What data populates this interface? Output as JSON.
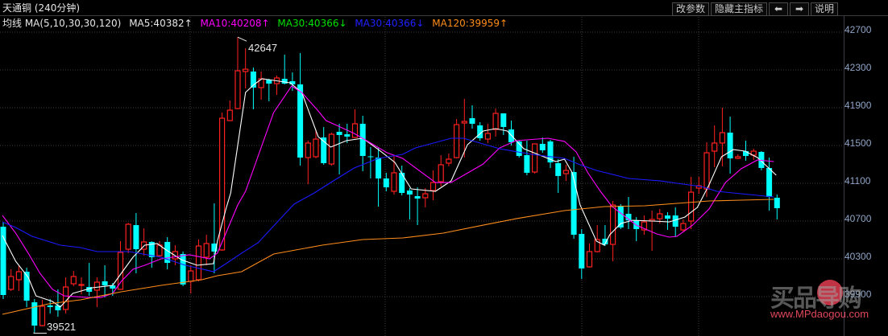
{
  "header": {
    "title": "天通铜 (240分钟)",
    "buttons": {
      "edit_params": "改参数",
      "hide_main_indicator": "隐藏主指标",
      "prev": "⬅",
      "next": "➡",
      "help": "说明"
    }
  },
  "ma_legend": {
    "label": "均线 MA(5,10,30,30,120)",
    "ma5": "MA5:40382↑",
    "ma10": "MA10:40208↑",
    "ma30a": "MA30:40366↓",
    "ma30b": "MA30:40366↓",
    "ma120": "MA120:39959↑"
  },
  "colors": {
    "up": "#ff2020",
    "down": "#00ffff",
    "ma5": "#ffffff",
    "ma10": "#ff00ff",
    "ma30a": "#00e000",
    "ma30b": "#1a1aff",
    "ma120": "#ff8c1a",
    "grid": "#3a3a3a"
  },
  "y_axis": {
    "ticks": [
      "42700",
      "42300",
      "41900",
      "41500",
      "41100",
      "40700",
      "40300",
      "39900"
    ]
  },
  "annotations": {
    "high": "42647",
    "low": "39521"
  },
  "watermark": {
    "logo": "买品导购",
    "url": "www.MPdaogou.com"
  },
  "chart_data": {
    "type": "candlestick",
    "title": "天通铜 (240分钟)",
    "ylabel": "",
    "ylim": [
      39521,
      42700
    ],
    "y_ticks": [
      42700,
      42300,
      41900,
      41500,
      41100,
      40700,
      40300,
      39900
    ],
    "grid": true,
    "high_marker": 42647,
    "low_marker": 39521,
    "candles_ohlc": [
      [
        40640,
        40683,
        39874,
        39917
      ],
      [
        39977,
        40189,
        39960,
        40113
      ],
      [
        40079,
        40232,
        39960,
        40164
      ],
      [
        40164,
        40206,
        39789,
        39857
      ],
      [
        39840,
        39874,
        39521,
        39593
      ],
      [
        39593,
        39866,
        39585,
        39798
      ],
      [
        39806,
        39874,
        39721,
        39789
      ],
      [
        39806,
        39977,
        39687,
        39755
      ],
      [
        39764,
        40104,
        39721,
        40002
      ],
      [
        40036,
        40172,
        40011,
        40113
      ],
      [
        40019,
        40104,
        39925,
        40028
      ],
      [
        40002,
        40257,
        39908,
        39951
      ],
      [
        39968,
        40104,
        39789,
        40053
      ],
      [
        40062,
        40232,
        39891,
        40019
      ],
      [
        40019,
        40045,
        39908,
        39985
      ],
      [
        39977,
        40487,
        39970,
        40368
      ],
      [
        40402,
        40680,
        40360,
        40666
      ],
      [
        40657,
        40785,
        40147,
        40402
      ],
      [
        40402,
        40623,
        40334,
        40479
      ],
      [
        40479,
        40487,
        40206,
        40317
      ],
      [
        40334,
        40487,
        40317,
        40445
      ],
      [
        40479,
        40530,
        40189,
        40257
      ],
      [
        40300,
        40445,
        40232,
        40377
      ],
      [
        40351,
        40377,
        40011,
        40028
      ],
      [
        40062,
        40232,
        39934,
        40172
      ],
      [
        40079,
        40504,
        40062,
        40436
      ],
      [
        40317,
        40555,
        40232,
        40462
      ],
      [
        40462,
        40887,
        40147,
        40377
      ],
      [
        40394,
        41849,
        40385,
        41789
      ],
      [
        41764,
        41977,
        41764,
        41874
      ],
      [
        41891,
        42647,
        41883,
        42291
      ],
      [
        42283,
        42530,
        42104,
        42308
      ],
      [
        42283,
        42326,
        41883,
        42113
      ],
      [
        42113,
        42283,
        41985,
        42206
      ],
      [
        42198,
        42206,
        41968,
        42155
      ],
      [
        42155,
        42240,
        42036,
        42215
      ],
      [
        42206,
        42462,
        42147,
        42155
      ],
      [
        42181,
        42274,
        42079,
        42147
      ],
      [
        42147,
        42479,
        41287,
        41372
      ],
      [
        41372,
        41551,
        41091,
        41526
      ],
      [
        41381,
        41670,
        41364,
        41568
      ],
      [
        41585,
        41696,
        41296,
        41313
      ],
      [
        41304,
        41636,
        41287,
        41619
      ],
      [
        41645,
        41730,
        41194,
        41611
      ],
      [
        41619,
        41730,
        41526,
        41594
      ],
      [
        41585,
        41883,
        41577,
        41730
      ],
      [
        41730,
        41815,
        41228,
        41389
      ],
      [
        41385,
        41483,
        41151,
        41377
      ],
      [
        41372,
        41475,
        40853,
        41151
      ],
      [
        41151,
        41211,
        41015,
        41057
      ],
      [
        41015,
        41389,
        40981,
        41211
      ],
      [
        41211,
        41287,
        40972,
        40998
      ],
      [
        41023,
        41049,
        40717,
        40981
      ],
      [
        40964,
        41057,
        40657,
        40938
      ],
      [
        40947,
        41049,
        40845,
        40989
      ],
      [
        41023,
        41236,
        40921,
        41108
      ],
      [
        41117,
        41398,
        41066,
        41296
      ],
      [
        41313,
        41415,
        41279,
        41355
      ],
      [
        41372,
        41781,
        41364,
        41721
      ],
      [
        41738,
        41994,
        41372,
        41755
      ],
      [
        41789,
        41926,
        41679,
        41730
      ],
      [
        41713,
        41747,
        41551,
        41577
      ],
      [
        41568,
        41730,
        41526,
        41628
      ],
      [
        41670,
        41891,
        41594,
        41840
      ],
      [
        41840,
        41840,
        41611,
        41696
      ],
      [
        41670,
        41764,
        41500,
        41534
      ],
      [
        41543,
        41551,
        41372,
        41389
      ],
      [
        41398,
        41551,
        41185,
        41211
      ],
      [
        41219,
        41517,
        41202,
        41517
      ],
      [
        41517,
        41585,
        41423,
        41449
      ],
      [
        41543,
        41560,
        41262,
        41321
      ],
      [
        41313,
        41355,
        40998,
        41177
      ],
      [
        41202,
        41296,
        41125,
        41236
      ],
      [
        41219,
        41381,
        40513,
        40555
      ],
      [
        40564,
        40615,
        40087,
        40198
      ],
      [
        40215,
        40462,
        40206,
        40377
      ],
      [
        40377,
        40657,
        40368,
        40504
      ],
      [
        40513,
        40657,
        40436,
        40453
      ],
      [
        40453,
        40913,
        40274,
        40870
      ],
      [
        40862,
        40879,
        40615,
        40632
      ],
      [
        40777,
        40955,
        40615,
        40708
      ],
      [
        40708,
        40742,
        40487,
        40615
      ],
      [
        40606,
        40759,
        40555,
        40691
      ],
      [
        40700,
        40811,
        40385,
        40717
      ],
      [
        40725,
        40828,
        40674,
        40777
      ],
      [
        40759,
        40794,
        40606,
        40725
      ],
      [
        40759,
        40845,
        40530,
        40640
      ],
      [
        40606,
        40717,
        40581,
        40674
      ],
      [
        40700,
        41168,
        40615,
        41006
      ],
      [
        41049,
        41168,
        40989,
        41074
      ],
      [
        41040,
        41534,
        40955,
        41423
      ],
      [
        41440,
        41713,
        41270,
        41526
      ],
      [
        41526,
        41900,
        41279,
        41636
      ],
      [
        41636,
        41806,
        41202,
        41364
      ],
      [
        41364,
        41406,
        41355,
        41381
      ],
      [
        41440,
        41551,
        41338,
        41389
      ],
      [
        41398,
        41466,
        41347,
        41440
      ],
      [
        41432,
        41440,
        41236,
        41262
      ],
      [
        41262,
        41372,
        40811,
        40955
      ],
      [
        40947,
        40981,
        40717,
        40836
      ]
    ],
    "series": [
      {
        "name": "MA5",
        "color": "#ffffff",
        "points": [
          [
            -0.1,
            40547
          ],
          [
            1.6,
            40274
          ],
          [
            3.2,
            40104
          ],
          [
            4.2,
            39908
          ],
          [
            6.3,
            39849
          ],
          [
            7.3,
            39789
          ],
          [
            8.9,
            39934
          ],
          [
            11.4,
            39994
          ],
          [
            14.0,
            40019
          ],
          [
            15.1,
            40147
          ],
          [
            16.6,
            40317
          ],
          [
            18.1,
            40445
          ],
          [
            19.7,
            40462
          ],
          [
            20.7,
            40402
          ],
          [
            22.8,
            40291
          ],
          [
            24.8,
            40232
          ],
          [
            26.9,
            40249
          ],
          [
            27.4,
            40487
          ],
          [
            28.5,
            40828
          ],
          [
            29.1,
            40998
          ],
          [
            31.0,
            42062
          ],
          [
            32.1,
            42147
          ],
          [
            33.1,
            42206
          ],
          [
            34.6,
            42189
          ],
          [
            36.7,
            42164
          ],
          [
            38.2,
            42062
          ],
          [
            40.3,
            41594
          ],
          [
            41.9,
            41483
          ],
          [
            43.9,
            41551
          ],
          [
            46.0,
            41577
          ],
          [
            48.0,
            41457
          ],
          [
            50.1,
            41321
          ],
          [
            52.2,
            41040
          ],
          [
            55.3,
            41015
          ],
          [
            57.3,
            41125
          ],
          [
            59.4,
            41509
          ],
          [
            61.4,
            41653
          ],
          [
            63.0,
            41679
          ],
          [
            64.5,
            41653
          ],
          [
            66.6,
            41466
          ],
          [
            70.7,
            41330
          ],
          [
            71.8,
            41355
          ],
          [
            72.8,
            41211
          ],
          [
            73.8,
            40870
          ],
          [
            75.9,
            40487
          ],
          [
            76.9,
            40445
          ],
          [
            77.6,
            40555
          ],
          [
            79.0,
            40674
          ],
          [
            80.5,
            40708
          ],
          [
            83.1,
            40700
          ],
          [
            85.2,
            40691
          ],
          [
            87.2,
            40742
          ],
          [
            88.8,
            40845
          ],
          [
            90.3,
            41083
          ],
          [
            91.9,
            41381
          ],
          [
            93.4,
            41457
          ],
          [
            94.9,
            41440
          ],
          [
            96.5,
            41372
          ],
          [
            97.5,
            41296
          ],
          [
            98.9,
            41185
          ]
        ]
      },
      {
        "name": "MA10",
        "color": "#ff00ff",
        "points": [
          [
            -0.1,
            40760
          ],
          [
            1.6,
            40572
          ],
          [
            3.2,
            40360
          ],
          [
            4.7,
            40147
          ],
          [
            6.3,
            39977
          ],
          [
            7.8,
            39908
          ],
          [
            10.9,
            39891
          ],
          [
            12.5,
            39891
          ],
          [
            14.0,
            39934
          ],
          [
            15.1,
            40062
          ],
          [
            16.6,
            40189
          ],
          [
            18.1,
            40232
          ],
          [
            20.2,
            40300
          ],
          [
            23.8,
            40343
          ],
          [
            26.4,
            40300
          ],
          [
            27.4,
            40360
          ],
          [
            28.5,
            40572
          ],
          [
            30.0,
            40870
          ],
          [
            31.0,
            41015
          ],
          [
            34.6,
            41849
          ],
          [
            36.9,
            42130
          ],
          [
            38.2,
            42062
          ],
          [
            40.3,
            41866
          ],
          [
            41.3,
            41764
          ],
          [
            42.9,
            41704
          ],
          [
            44.9,
            41628
          ],
          [
            47.0,
            41526
          ],
          [
            49.1,
            41423
          ],
          [
            51.1,
            41364
          ],
          [
            55.3,
            41108
          ],
          [
            57.3,
            41108
          ],
          [
            61.4,
            41304
          ],
          [
            63.5,
            41474
          ],
          [
            65.6,
            41551
          ],
          [
            69.7,
            41577
          ],
          [
            71.8,
            41543
          ],
          [
            73.3,
            41432
          ],
          [
            74.8,
            41211
          ],
          [
            76.4,
            41015
          ],
          [
            77.9,
            40853
          ],
          [
            81.0,
            40657
          ],
          [
            83.6,
            40564
          ],
          [
            85.2,
            40530
          ],
          [
            86.2,
            40538
          ],
          [
            88.2,
            40657
          ],
          [
            90.3,
            40828
          ],
          [
            92.4,
            41108
          ],
          [
            94.4,
            41253
          ],
          [
            96.5,
            41347
          ],
          [
            98.6,
            41330
          ]
        ]
      },
      {
        "name": "MA30",
        "color": "#1a1aff",
        "points": [
          [
            -0.1,
            40691
          ],
          [
            1.6,
            40632
          ],
          [
            3.7,
            40538
          ],
          [
            7.3,
            40445
          ],
          [
            9.9,
            40419
          ],
          [
            12.0,
            40377
          ],
          [
            16.1,
            40377
          ],
          [
            20.2,
            40317
          ],
          [
            23.3,
            40232
          ],
          [
            26.9,
            40164
          ],
          [
            28.5,
            40249
          ],
          [
            30.5,
            40360
          ],
          [
            32.6,
            40470
          ],
          [
            37.2,
            40879
          ],
          [
            39.8,
            40998
          ],
          [
            41.9,
            41108
          ],
          [
            44.9,
            41262
          ],
          [
            48.0,
            41364
          ],
          [
            51.1,
            41406
          ],
          [
            52.7,
            41474
          ],
          [
            57.3,
            41577
          ],
          [
            58.9,
            41577
          ],
          [
            63.5,
            41466
          ],
          [
            67.6,
            41406
          ],
          [
            71.8,
            41364
          ],
          [
            73.8,
            41296
          ],
          [
            75.9,
            41236
          ],
          [
            80.0,
            41151
          ],
          [
            84.1,
            41125
          ],
          [
            86.2,
            41100
          ],
          [
            89.3,
            41066
          ],
          [
            91.3,
            41015
          ],
          [
            94.4,
            40989
          ],
          [
            98.6,
            40955
          ]
        ]
      },
      {
        "name": "MA120",
        "color": "#ff8c1a",
        "points": [
          [
            -0.1,
            39713
          ],
          [
            5.8,
            39823
          ],
          [
            9.9,
            39866
          ],
          [
            15.1,
            39951
          ],
          [
            20.2,
            40019
          ],
          [
            25.4,
            40079
          ],
          [
            27.4,
            40121
          ],
          [
            30.5,
            40164
          ],
          [
            34.6,
            40351
          ],
          [
            40.8,
            40445
          ],
          [
            46.0,
            40504
          ],
          [
            51.1,
            40521
          ],
          [
            56.3,
            40572
          ],
          [
            61.4,
            40657
          ],
          [
            65.6,
            40725
          ],
          [
            71.8,
            40811
          ],
          [
            76.9,
            40853
          ],
          [
            82.1,
            40862
          ],
          [
            86.2,
            40887
          ],
          [
            90.3,
            40913
          ],
          [
            94.4,
            40921
          ],
          [
            98.6,
            40930
          ]
        ]
      }
    ]
  }
}
